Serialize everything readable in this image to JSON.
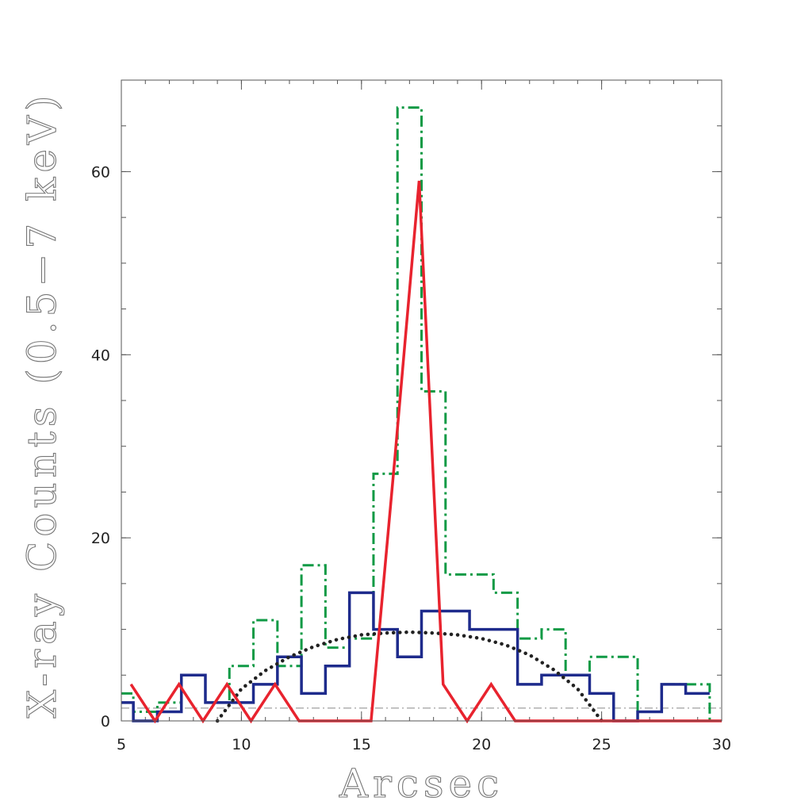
{
  "chart_data": {
    "type": "line",
    "xlabel": "Arcsec",
    "ylabel": "X-ray Counts (0.5−7 keV)",
    "xlim": [
      5,
      30
    ],
    "ylim": [
      0,
      70
    ],
    "x_ticks": [
      5,
      10,
      15,
      20,
      25,
      30
    ],
    "x_tick_labels": [
      "5",
      "10",
      "15",
      "20",
      "25",
      "30"
    ],
    "y_ticks": [
      0,
      20,
      40,
      60
    ],
    "y_tick_labels": [
      "0",
      "20",
      "40",
      "60"
    ],
    "x_minor_step": 1,
    "y_minor_step": 5,
    "grid": false,
    "colors": {
      "green_histogram": "#0f9a45",
      "blue_histogram": "#1e2b8c",
      "red_line": "#e8232e",
      "dotted_curve": "#222222",
      "background_line": "#888888"
    },
    "series": [
      {
        "style": "step-dashdot",
        "color": "#0f9a45",
        "bin_edges": [
          5,
          5.5,
          6.5,
          7.5,
          8.5,
          9.5,
          10.5,
          11.5,
          12.5,
          13.5,
          14.5,
          15.5,
          16.5,
          17.5,
          18.5,
          19.5,
          20.5,
          21.5,
          22.5,
          23.5,
          24.5,
          25.5,
          26.5,
          27.5,
          28.5,
          29.5,
          30
        ],
        "values": [
          3,
          1,
          2,
          5,
          2,
          6,
          11,
          6,
          17,
          8,
          9,
          27,
          67,
          36,
          16,
          16,
          14,
          9,
          10,
          5,
          7,
          7,
          1,
          4,
          4,
          0
        ]
      },
      {
        "style": "step-solid",
        "color": "#1e2b8c",
        "bin_edges": [
          5,
          5.5,
          6.5,
          7.5,
          8.5,
          9.5,
          10.5,
          11.5,
          12.5,
          13.5,
          14.5,
          15.5,
          16.5,
          17.5,
          18.5,
          19.5,
          20.5,
          21.5,
          22.5,
          23.5,
          24.5,
          25.5,
          26.5,
          27.5,
          28.5,
          29.5
        ],
        "values": [
          2,
          0,
          1,
          5,
          2,
          2,
          4,
          7,
          3,
          6,
          14,
          10,
          7,
          12,
          12,
          10,
          10,
          4,
          5,
          5,
          3,
          0,
          1,
          4,
          3
        ]
      },
      {
        "style": "line-solid",
        "color": "#e8232e",
        "x": [
          5.4,
          6.4,
          7.4,
          8.4,
          9.4,
          10.4,
          11.4,
          12.4,
          13.4,
          14.4,
          15.4,
          16.4,
          17.4,
          18.4,
          19.4,
          20.4,
          21.4,
          22.4,
          23.4,
          24.4,
          25.4,
          26.4,
          27.4,
          28.4,
          29.4,
          30
        ],
        "y": [
          4,
          0,
          4,
          0,
          4,
          0,
          4,
          0,
          0,
          0,
          0,
          29,
          59,
          4,
          0,
          4,
          0,
          0,
          0,
          0,
          0,
          0,
          0,
          0,
          0,
          0
        ]
      },
      {
        "style": "dotted",
        "color": "#222222",
        "x": [
          9.0,
          10.0,
          11.0,
          12.0,
          13.0,
          14.0,
          15.0,
          16.0,
          17.0,
          18.0,
          19.0,
          20.0,
          21.0,
          22.0,
          23.0,
          24.0,
          25.0
        ],
        "y": [
          0,
          3.5,
          5.5,
          7.0,
          8.1,
          8.9,
          9.4,
          9.6,
          9.7,
          9.6,
          9.4,
          9.0,
          8.3,
          7.2,
          5.6,
          3.5,
          0
        ]
      },
      {
        "style": "dashdot-thin",
        "color": "#888888",
        "x": [
          5,
          30
        ],
        "y": [
          1.4,
          1.4
        ]
      }
    ]
  }
}
